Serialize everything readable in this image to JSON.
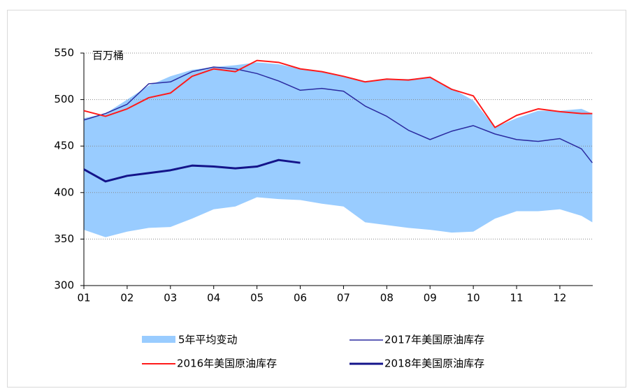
{
  "chart_data": {
    "type": "line",
    "y_label": "百万桶",
    "x": [
      1,
      1.5,
      2,
      2.5,
      3,
      3.5,
      4,
      4.5,
      5,
      5.5,
      6,
      6.5,
      7,
      7.5,
      8,
      8.5,
      9,
      9.5,
      10,
      10.5,
      11,
      11.5,
      12,
      12.5,
      12.75
    ],
    "xlim": [
      1,
      12.76
    ],
    "xticks": [
      {
        "value": 1,
        "label": "01"
      },
      {
        "value": 2,
        "label": "02"
      },
      {
        "value": 3,
        "label": "03"
      },
      {
        "value": 4,
        "label": "04"
      },
      {
        "value": 5,
        "label": "05"
      },
      {
        "value": 6,
        "label": "06"
      },
      {
        "value": 7,
        "label": "07"
      },
      {
        "value": 8,
        "label": "08"
      },
      {
        "value": 9,
        "label": "09"
      },
      10,
      11,
      12
    ],
    "ylim": [
      300,
      550
    ],
    "yticks": [
      300,
      350,
      400,
      450,
      500,
      550
    ],
    "grid": true,
    "band": {
      "name": "5年平均变动",
      "color": "#99ccff",
      "low": [
        360,
        352,
        358,
        362,
        363,
        372,
        382,
        385,
        395,
        393,
        392,
        388,
        385,
        368,
        365,
        362,
        360,
        357,
        358,
        372,
        380,
        380,
        382,
        375,
        368
      ],
      "high": [
        480,
        485,
        500,
        515,
        525,
        532,
        535,
        537,
        540,
        538,
        533,
        530,
        525,
        520,
        522,
        522,
        524,
        512,
        499,
        470,
        480,
        488,
        488,
        490,
        485
      ]
    },
    "series": [
      {
        "name": "2017年美国原油库存",
        "color": "#2b2ba0",
        "width": 1.5,
        "values": [
          478,
          485,
          495,
          517,
          519,
          530,
          535,
          533,
          528,
          520,
          510,
          512,
          509,
          493,
          482,
          467,
          457,
          466,
          472,
          463,
          457,
          455,
          458,
          447,
          432
        ]
      },
      {
        "name": "2016年美国原油库存",
        "color": "#ff1a1a",
        "width": 2,
        "values": [
          488,
          482,
          490,
          502,
          507,
          525,
          533,
          530,
          542,
          540,
          533,
          530,
          525,
          519,
          522,
          521,
          524,
          511,
          504,
          470,
          483,
          490,
          487,
          485,
          485
        ]
      },
      {
        "name": "2018年美国原油库存",
        "color": "#14148a",
        "width": 3,
        "values": [
          425,
          412,
          418,
          421,
          424,
          429,
          428,
          426,
          428,
          435,
          432,
          null,
          null,
          null,
          null,
          null,
          null,
          null,
          null,
          null,
          null,
          null,
          null,
          null,
          null
        ]
      }
    ]
  }
}
